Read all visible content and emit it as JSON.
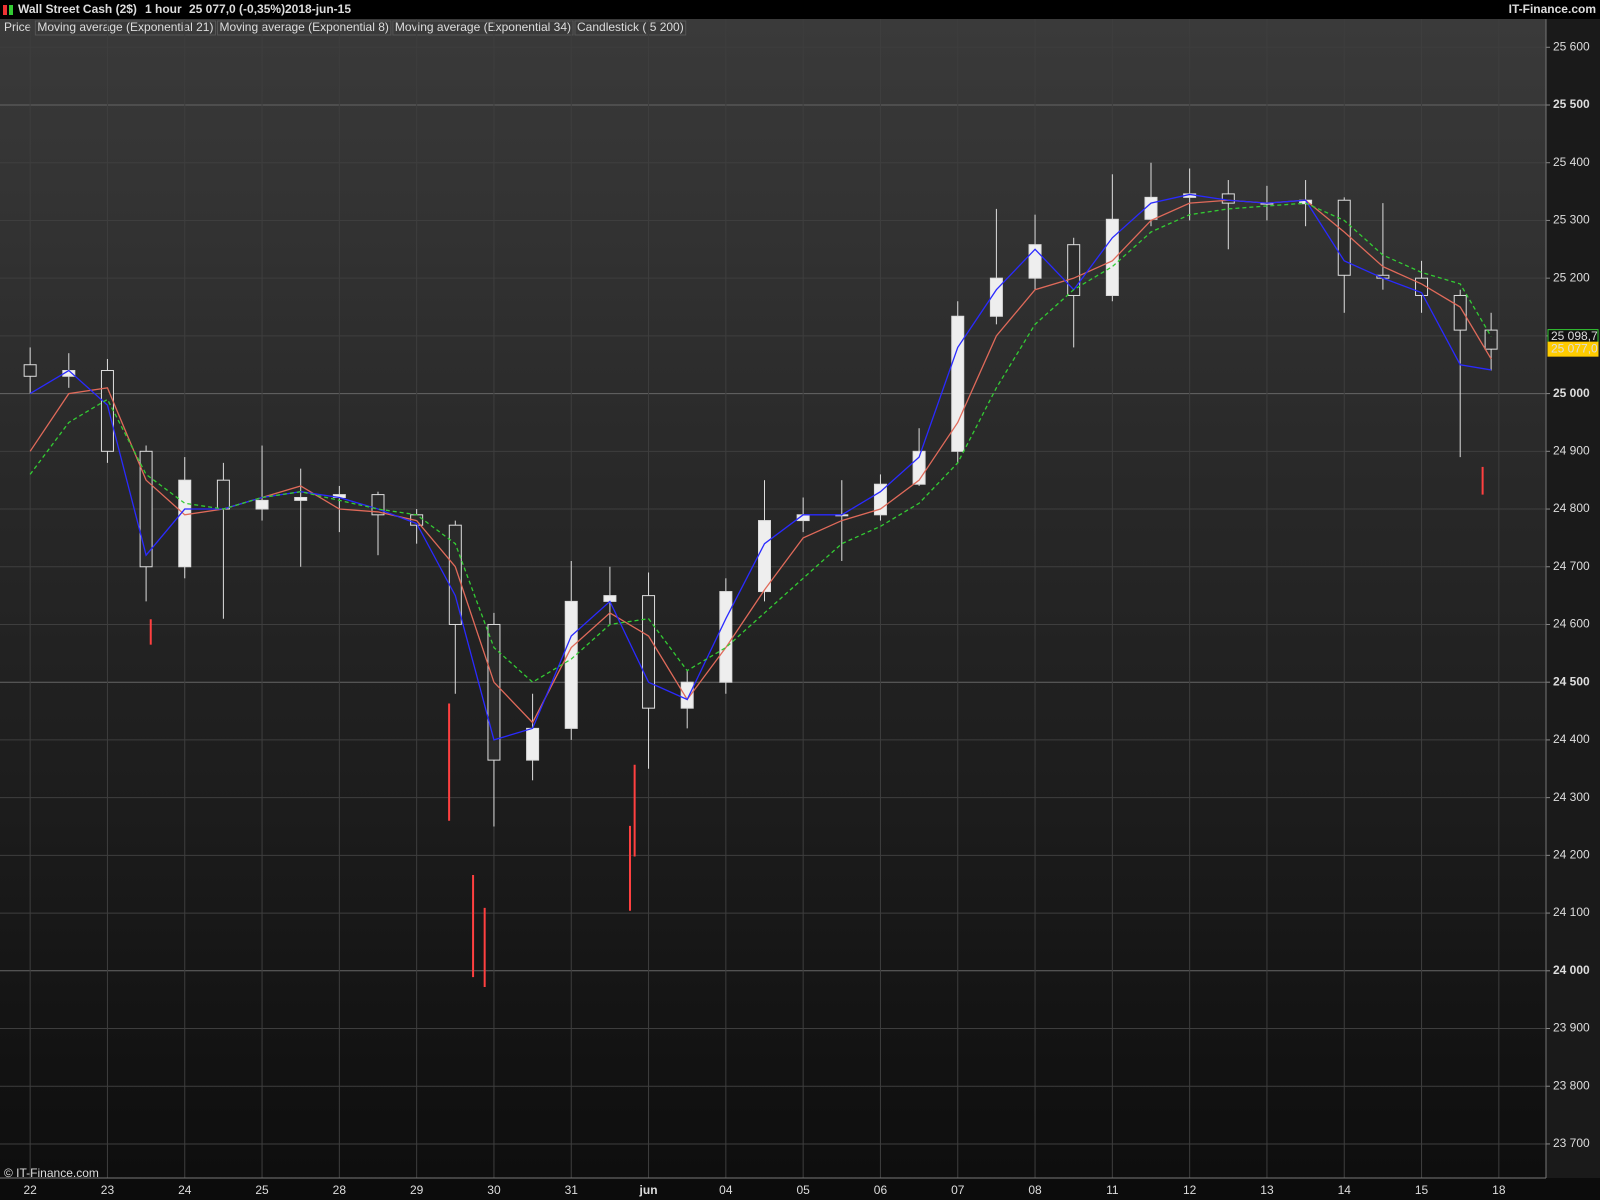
{
  "header": {
    "title": "Wall Street Cash (2$)",
    "period": "1 hour",
    "quote": "25 077,0 (-0,35%)",
    "date": "2018-jun-15",
    "brand": "IT-Finance.com"
  },
  "footer": "© IT-Finance.com",
  "chart_data": {
    "type": "candlestick",
    "price_label": "Price",
    "candlestick_label": "Candlestick ( 5 200)",
    "x": [
      0,
      0.5,
      1,
      1.5,
      2,
      2.5,
      3,
      3.5,
      4,
      4.5,
      5,
      5.5,
      6,
      6.5,
      7,
      7.5,
      8,
      8.5,
      9,
      9.5,
      10,
      10.5,
      11,
      11.5,
      12,
      12.5,
      13,
      13.5,
      14,
      14.5,
      15,
      15.5,
      16,
      16.5,
      17,
      17.5,
      18,
      18.5,
      18.9
    ],
    "candles": [
      [
        25050,
        25080,
        25000,
        25030
      ],
      [
        25030,
        25070,
        25010,
        25040
      ],
      [
        25040,
        25060,
        24880,
        24900
      ],
      [
        24900,
        24910,
        24640,
        24700
      ],
      [
        24700,
        24890,
        24680,
        24850
      ],
      [
        24850,
        24880,
        24610,
        24800
      ],
      [
        24800,
        24910,
        24780,
        24815
      ],
      [
        24815,
        24870,
        24700,
        24820
      ],
      [
        24820,
        24840,
        24760,
        24825
      ],
      [
        24825,
        24830,
        24720,
        24790
      ],
      [
        24790,
        24800,
        24740,
        24772
      ],
      [
        24772,
        24780,
        24480,
        24600
      ],
      [
        24600,
        24620,
        24250,
        24365
      ],
      [
        24365,
        24480,
        24330,
        24420
      ],
      [
        24420,
        24710,
        24400,
        24640
      ],
      [
        24640,
        24700,
        24600,
        24650
      ],
      [
        24650,
        24690,
        24350,
        24455
      ],
      [
        24455,
        24520,
        24420,
        24500
      ],
      [
        24500,
        24680,
        24480,
        24657
      ],
      [
        24657,
        24850,
        24640,
        24780
      ],
      [
        24780,
        24820,
        24760,
        24790
      ],
      [
        24790,
        24850,
        24710,
        24790
      ],
      [
        24790,
        24860,
        24780,
        24843
      ],
      [
        24843,
        24940,
        24840,
        24900
      ],
      [
        24900,
        25160,
        24880,
        25134
      ],
      [
        25134,
        25320,
        25120,
        25200
      ],
      [
        25200,
        25310,
        25180,
        25258
      ],
      [
        25258,
        25270,
        25080,
        25170
      ],
      [
        25170,
        25380,
        25160,
        25302
      ],
      [
        25302,
        25400,
        25290,
        25340
      ],
      [
        25340,
        25390,
        25300,
        25346
      ],
      [
        25346,
        25370,
        25250,
        25330
      ],
      [
        25330,
        25360,
        25300,
        25329
      ],
      [
        25329,
        25370,
        25290,
        25335
      ],
      [
        25335,
        25340,
        25140,
        25205
      ],
      [
        25205,
        25330,
        25180,
        25200
      ],
      [
        25200,
        25230,
        25140,
        25170
      ],
      [
        25170,
        25180,
        24890,
        25110
      ],
      [
        25110,
        25140,
        25040,
        25077
      ]
    ],
    "series": [
      {
        "name": "Moving average (Exponential 21)",
        "color": "#e06a5a",
        "dashed": false,
        "values": [
          24900,
          25000,
          25010,
          24850,
          24790,
          24800,
          24820,
          24840,
          24800,
          24795,
          24780,
          24700,
          24500,
          24430,
          24560,
          24620,
          24580,
          24470,
          24560,
          24660,
          24750,
          24780,
          24800,
          24850,
          24950,
          25100,
          25180,
          25200,
          25230,
          25300,
          25330,
          25335,
          25330,
          25335,
          25280,
          25220,
          25190,
          25150,
          25060
        ]
      },
      {
        "name": "Moving average (Exponential 8)",
        "color": "#2a2aff",
        "dashed": false,
        "values": [
          25000,
          25040,
          24980,
          24720,
          24800,
          24800,
          24820,
          24830,
          24820,
          24800,
          24775,
          24650,
          24400,
          24420,
          24580,
          24640,
          24500,
          24470,
          24610,
          24740,
          24790,
          24790,
          24830,
          24890,
          25080,
          25180,
          25250,
          25180,
          25270,
          25330,
          25345,
          25335,
          25330,
          25335,
          25230,
          25200,
          25175,
          25050,
          25041
        ]
      },
      {
        "name": "Moving average (Exponential 34)",
        "color": "#33cc33",
        "dashed": true,
        "values": [
          24860,
          24950,
          24990,
          24860,
          24810,
          24800,
          24820,
          24830,
          24815,
          24800,
          24790,
          24740,
          24560,
          24500,
          24540,
          24600,
          24610,
          24520,
          24560,
          24620,
          24680,
          24740,
          24770,
          24810,
          24880,
          25010,
          25120,
          25180,
          25220,
          25280,
          25310,
          25320,
          25325,
          25330,
          25300,
          25240,
          25210,
          25190,
          25099
        ]
      }
    ],
    "signals": [
      {
        "x": 1.56,
        "high": 24609,
        "low": 24565
      },
      {
        "x": 5.42,
        "high": 24463,
        "low": 24260
      },
      {
        "x": 5.73,
        "high": 24166,
        "low": 23989
      },
      {
        "x": 5.88,
        "high": 24109,
        "low": 23972
      },
      {
        "x": 7.76,
        "high": 24251,
        "low": 24104
      },
      {
        "x": 7.82,
        "high": 24357,
        "low": 24198
      },
      {
        "x": 18.79,
        "high": 24873,
        "low": 24825
      }
    ],
    "signal_color": "#ff4040",
    "last_labels": [
      {
        "value": 25098.7,
        "label": "25 098,7",
        "color": "#33cc33"
      },
      {
        "value": 25077,
        "label": "25 077,0",
        "color": "#ffcc00"
      }
    ],
    "xlim": [
      -0.39,
      19.61
    ],
    "xticks": [
      {
        "value": 0,
        "label": "22"
      },
      {
        "value": 1,
        "label": "23"
      },
      {
        "value": 2,
        "label": "24"
      },
      {
        "value": 3,
        "label": "25"
      },
      {
        "value": 4,
        "label": "28"
      },
      {
        "value": 5,
        "label": "29"
      },
      {
        "value": 6,
        "label": "30"
      },
      {
        "value": 7,
        "label": "31"
      },
      {
        "value": 8,
        "label": "jun"
      },
      {
        "value": 9,
        "label": "04"
      },
      {
        "value": 10,
        "label": "05"
      },
      {
        "value": 11,
        "label": "06"
      },
      {
        "value": 12,
        "label": "07"
      },
      {
        "value": 13,
        "label": "08"
      },
      {
        "value": 14,
        "label": "11"
      },
      {
        "value": 15,
        "label": "12"
      },
      {
        "value": 16,
        "label": "13"
      },
      {
        "value": 17,
        "label": "14"
      },
      {
        "value": 18,
        "label": "15"
      },
      {
        "value": 19,
        "label": "18"
      }
    ],
    "ylim": [
      23641,
      25649
    ],
    "yticks": [
      {
        "value": 23700,
        "label": "23 700"
      },
      {
        "value": 23800,
        "label": "23 800"
      },
      {
        "value": 23900,
        "label": "23 900"
      },
      {
        "value": 24000,
        "label": "24 000"
      },
      {
        "value": 24100,
        "label": "24 100"
      },
      {
        "value": 24200,
        "label": "24 200"
      },
      {
        "value": 24300,
        "label": "24 300"
      },
      {
        "value": 24400,
        "label": "24 400"
      },
      {
        "value": 24500,
        "label": "24 500"
      },
      {
        "value": 24600,
        "label": "24 600"
      },
      {
        "value": 24700,
        "label": "24 700"
      },
      {
        "value": 24800,
        "label": "24 800"
      },
      {
        "value": 24900,
        "label": "24 900"
      },
      {
        "value": 25000,
        "label": "25 000"
      },
      {
        "value": 25100,
        "label": "25 100"
      },
      {
        "value": 25200,
        "label": "25 200"
      },
      {
        "value": 25300,
        "label": "25 300"
      },
      {
        "value": 25400,
        "label": "25 400"
      },
      {
        "value": 25500,
        "label": "25 500"
      },
      {
        "value": 25600,
        "label": "25 600"
      }
    ],
    "grid": true
  }
}
